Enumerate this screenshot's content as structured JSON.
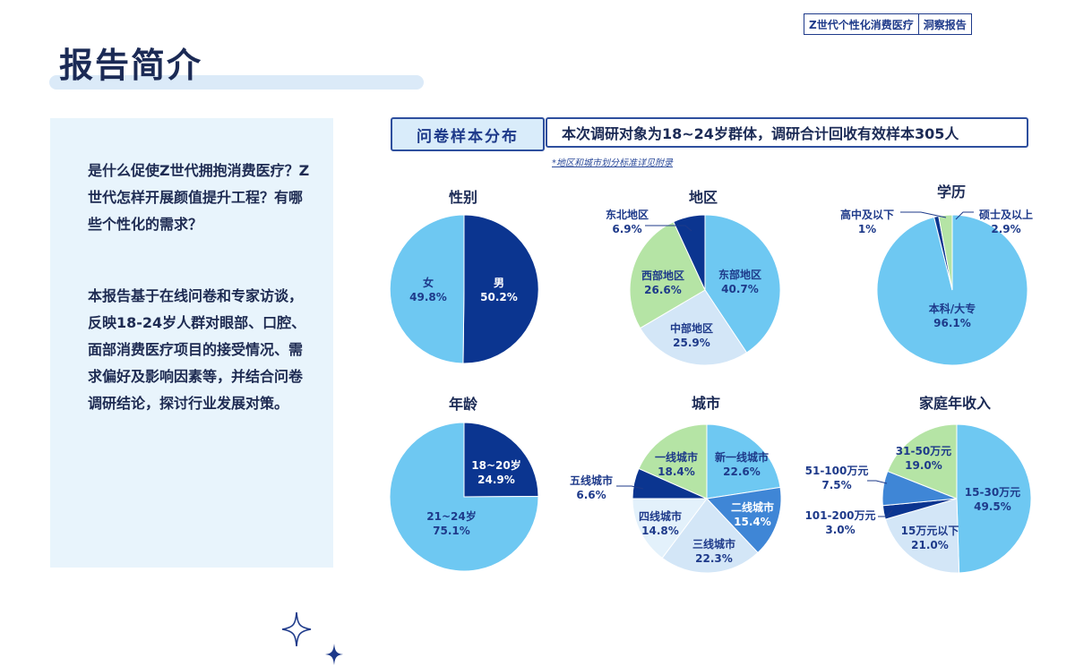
{
  "header": {
    "badge_left": "Z世代个性化消费医疗",
    "badge_right": "洞察报告",
    "title": "报告简介"
  },
  "left_panel": {
    "question": "是什么促使Z世代拥抱消费医疗？Z世代怎样开展颜值提升工程？有哪些个性化的需求？",
    "description": "本报告基于在线问卷和专家访谈，反映18-24岁人群对眼部、口腔、面部消费医疗项目的接受情况、需求偏好及影响因素等，并结合问卷调研结论，探讨行业发展对策。"
  },
  "survey": {
    "tag": "问卷样本分布",
    "summary": "本次调研对象为18~24岁群体，调研合计回收有效样本305人",
    "note": "*地区和城市划分标准详见附录"
  },
  "colors": {
    "navy": "#0b3590",
    "sky": "#6ec8f2",
    "green": "#b5e4a5",
    "pale": "#d3e6f7",
    "mid": "#3f86d6"
  },
  "chart_data": [
    {
      "type": "pie",
      "title": "性别",
      "series": [
        {
          "label": "男",
          "value": 50.2,
          "value_label": "50.2%",
          "color": "#0b3590"
        },
        {
          "label": "女",
          "value": 49.8,
          "value_label": "49.8%",
          "color": "#6ec8f2"
        }
      ]
    },
    {
      "type": "pie",
      "title": "地区",
      "series": [
        {
          "label": "东部地区",
          "value": 40.7,
          "value_label": "40.7%",
          "color": "#6ec8f2"
        },
        {
          "label": "中部地区",
          "value": 25.9,
          "value_label": "25.9%",
          "color": "#d3e6f7"
        },
        {
          "label": "西部地区",
          "value": 26.6,
          "value_label": "26.6%",
          "color": "#b5e4a5"
        },
        {
          "label": "东北地区",
          "value": 6.9,
          "value_label": "6.9%",
          "color": "#0b3590"
        }
      ]
    },
    {
      "type": "pie",
      "title": "学历",
      "series": [
        {
          "label": "本科/大专",
          "value": 96.1,
          "value_label": "96.1%",
          "color": "#6ec8f2"
        },
        {
          "label": "高中及以下",
          "value": 1,
          "value_label": "1%",
          "color": "#0b3590"
        },
        {
          "label": "硕士及以上",
          "value": 2.9,
          "value_label": "2.9%",
          "color": "#b5e4a5"
        }
      ]
    },
    {
      "type": "pie",
      "title": "年龄",
      "series": [
        {
          "label": "18~20岁",
          "value": 24.9,
          "value_label": "24.9%",
          "color": "#0b3590"
        },
        {
          "label": "21~24岁",
          "value": 75.1,
          "value_label": "75.1%",
          "color": "#6ec8f2"
        }
      ]
    },
    {
      "type": "pie",
      "title": "城市",
      "series": [
        {
          "label": "新一线城市",
          "value": 22.6,
          "value_label": "22.6%",
          "color": "#6ec8f2"
        },
        {
          "label": "二线城市",
          "value": 15.4,
          "value_label": "15.4%",
          "color": "#3f86d6"
        },
        {
          "label": "三线城市",
          "value": 22.3,
          "value_label": "22.3%",
          "color": "#d3e6f7"
        },
        {
          "label": "四线城市",
          "value": 14.8,
          "value_label": "14.8%",
          "color": "#e3f1fb"
        },
        {
          "label": "五线城市",
          "value": 6.6,
          "value_label": "6.6%",
          "color": "#0b3590"
        },
        {
          "label": "一线城市",
          "value": 18.4,
          "value_label": "18.4%",
          "color": "#b5e4a5"
        }
      ]
    },
    {
      "type": "pie",
      "title": "家庭年收入",
      "series": [
        {
          "label": "15-30万元",
          "value": 49.5,
          "value_label": "49.5%",
          "color": "#6ec8f2"
        },
        {
          "label": "15万元以下",
          "value": 21.0,
          "value_label": "21.0%",
          "color": "#d3e6f7"
        },
        {
          "label": "101-200万元",
          "value": 3.0,
          "value_label": "3.0%",
          "color": "#0b3590"
        },
        {
          "label": "51-100万元",
          "value": 7.5,
          "value_label": "7.5%",
          "color": "#3f86d6"
        },
        {
          "label": "31-50万元",
          "value": 19.0,
          "value_label": "19.0%",
          "color": "#b5e4a5"
        }
      ]
    }
  ]
}
